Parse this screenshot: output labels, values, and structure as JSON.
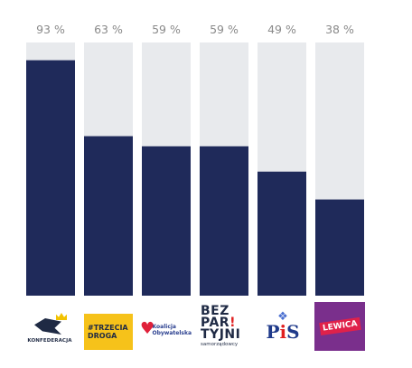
{
  "chart_data": {
    "type": "bar",
    "categories": [
      "Konfederacja",
      "Trzecia Droga",
      "Koalicja Obywatelska",
      "Bezpartyjni Samorządowcy",
      "PiS",
      "Lewica"
    ],
    "values": [
      93,
      63,
      59,
      59,
      49,
      38
    ],
    "value_labels": [
      "93 %",
      "63 %",
      "59 %",
      "59 %",
      "49 %",
      "38 %"
    ],
    "ylim": [
      0,
      100
    ],
    "colors": {
      "bar": "#1f2a5a",
      "track": "#e8eaed",
      "label": "#8a8a8a"
    }
  },
  "logos": {
    "konfederacja": {
      "icon": "crowned-eagle-icon",
      "text": "KONFEDERACJA",
      "sub": "WOLNOŚĆ I NIEPODLEGŁOŚĆ"
    },
    "trzecia_droga": {
      "line1": "#TRZECIA",
      "line2": "DROGA"
    },
    "ko": {
      "icon": "heart-icon",
      "line1": "Koalicja",
      "line2": "Obywatelska"
    },
    "bezpartyjni": {
      "line1": "BEZ",
      "line2": "PAR",
      "line3": "TYJNI",
      "bang": "!",
      "sub": "samorządowcy"
    },
    "pis": {
      "icon": "eagle-icon",
      "text_p": "P",
      "text_i": "i",
      "text_s": "S"
    },
    "lewica": {
      "text": "LEWICA"
    }
  }
}
